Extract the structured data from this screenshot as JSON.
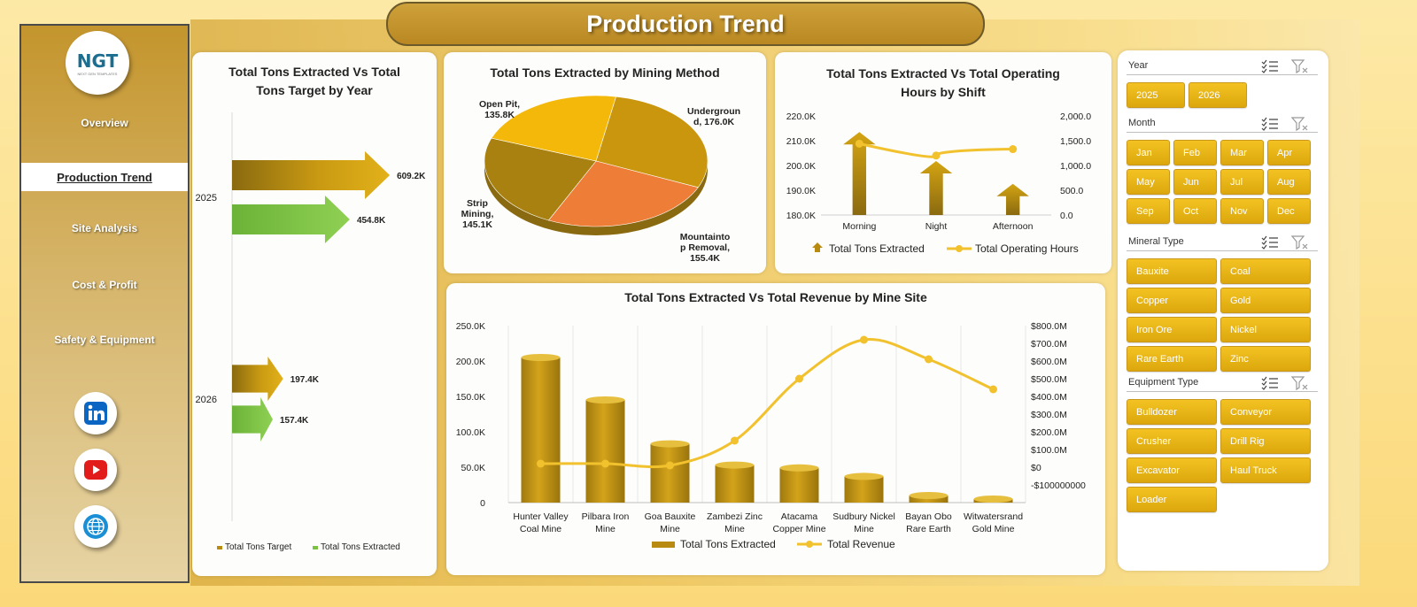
{
  "app": {
    "title": "Production Trend",
    "logo_text": "NGT",
    "logo_subtext": "NEXT GEN TEMPLATES"
  },
  "sidebar": {
    "items": [
      {
        "label": "Overview"
      },
      {
        "label": "Production Trend",
        "active": true
      },
      {
        "label": "Site Analysis"
      },
      {
        "label": "Cost & Profit"
      },
      {
        "label": "Safety & Equipment"
      }
    ],
    "social": [
      {
        "icon": "linkedin-icon",
        "color": "#0a66c2"
      },
      {
        "icon": "youtube-icon",
        "color": "#e21b1b"
      },
      {
        "icon": "globe-icon",
        "color": "#1b8fd6"
      }
    ]
  },
  "colors": {
    "gold": "#c99a12",
    "green": "#7cc242",
    "orange": "#f0843a",
    "yellow": "#f5bd08",
    "line": "#f2c12e",
    "chip": "#e9b418"
  },
  "chart_data": [
    {
      "id": "year",
      "type": "bar",
      "orientation": "horizontal",
      "title": "Total Tons Extracted Vs Total Tons Target by Year",
      "categories": [
        "2025",
        "2026"
      ],
      "series": [
        {
          "name": "Total Tons Target",
          "values": [
            609.2,
            197.4
          ],
          "labels": [
            "609.2K",
            "197.4K"
          ]
        },
        {
          "name": "Total Tons Extracted",
          "values": [
            454.8,
            157.4
          ],
          "labels": [
            "454.8K",
            "157.4K"
          ]
        }
      ],
      "legend_position": "bottom"
    },
    {
      "id": "method",
      "type": "pie",
      "title": "Total Tons Extracted by Mining Method",
      "slices": [
        {
          "label": "Underground, 176.0K",
          "value": 176.0
        },
        {
          "label": "Mountaintop Removal, 155.4K",
          "value": 155.4
        },
        {
          "label": "Strip Mining, 145.1K",
          "value": 145.1
        },
        {
          "label": "Open Pit, 135.8K",
          "value": 135.8
        }
      ]
    },
    {
      "id": "shift",
      "type": "bar",
      "title": "Total Tons Extracted Vs Total Operating Hours by Shift",
      "categories": [
        "Morning",
        "Night",
        "Afternoon"
      ],
      "series": [
        {
          "name": "Total Tons Extracted",
          "values": [
            213.5,
            201.8,
            192.6
          ],
          "axis": "left"
        },
        {
          "name": "Total Operating Hours",
          "values": [
            1440,
            1200,
            1330
          ],
          "axis": "right",
          "type": "line"
        }
      ],
      "ylim": [
        180,
        220
      ],
      "y_ticks": [
        "220.0K",
        "210.0K",
        "200.0K",
        "190.0K",
        "180.0K"
      ],
      "y2lim": [
        0,
        2000
      ],
      "y2_ticks": [
        "2,000.0",
        "1,500.0",
        "1,000.0",
        "500.0",
        "0.0"
      ],
      "legend_position": "bottom"
    },
    {
      "id": "site",
      "type": "bar",
      "title": "Total Tons Extracted Vs Total Revenue by Mine Site",
      "categories": [
        "Hunter Valley Coal Mine",
        "Pilbara Iron Mine",
        "Goa Bauxite Mine",
        "Zambezi Zinc Mine",
        "Atacama Copper Mine",
        "Sudbury Nickel Mine",
        "Bayan Obo Rare Earth",
        "Witwatersrand Gold Mine"
      ],
      "category_lines": [
        [
          "Hunter Valley",
          "Coal Mine"
        ],
        [
          "Pilbara Iron",
          "Mine"
        ],
        [
          "Goa Bauxite",
          "Mine"
        ],
        [
          "Zambezi Zinc",
          "Mine"
        ],
        [
          "Atacama",
          "Copper Mine"
        ],
        [
          "Sudbury Nickel",
          "Mine"
        ],
        [
          "Bayan Obo",
          "Rare Earth"
        ],
        [
          "Witwatersrand",
          "Gold Mine"
        ]
      ],
      "series": [
        {
          "name": "Total Tons Extracted",
          "values": [
            205,
            145,
            83,
            53,
            49,
            37,
            10,
            5
          ],
          "axis": "left"
        },
        {
          "name": "Total Revenue",
          "values": [
            20,
            20,
            10,
            150,
            500,
            720,
            610,
            440
          ],
          "axis": "right",
          "type": "line"
        }
      ],
      "ylim": [
        0,
        250
      ],
      "y_ticks": [
        "250.0K",
        "200.0K",
        "150.0K",
        "100.0K",
        "50.0K",
        "0"
      ],
      "y2lim": [
        -100,
        800
      ],
      "y2_ticks": [
        "$800.0M",
        "$700.0M",
        "$600.0M",
        "$500.0M",
        "$400.0M",
        "$300.0M",
        "$200.0M",
        "$100.0M",
        "$0",
        "-$100000000"
      ],
      "legend_position": "bottom"
    }
  ],
  "slicers": [
    {
      "label": "Year",
      "cols": 3,
      "items": [
        "2025",
        "2026"
      ]
    },
    {
      "label": "Month",
      "cols": 4,
      "items": [
        "Jan",
        "Feb",
        "Mar",
        "Apr",
        "May",
        "Jun",
        "Jul",
        "Aug",
        "Sep",
        "Oct",
        "Nov",
        "Dec"
      ]
    },
    {
      "label": "Mineral Type",
      "cols": 2,
      "items": [
        "Bauxite",
        "Coal",
        "Copper",
        "Gold",
        "Iron Ore",
        "Nickel",
        "Rare Earth",
        "Zinc"
      ]
    },
    {
      "label": "Equipment Type",
      "cols": 2,
      "items": [
        "Bulldozer",
        "Conveyor",
        "Crusher",
        "Drill Rig",
        "Excavator",
        "Haul Truck",
        "Loader"
      ]
    }
  ]
}
